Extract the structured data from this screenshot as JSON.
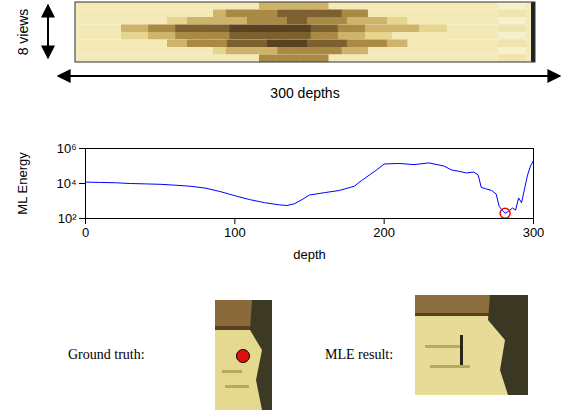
{
  "strip": {
    "rows_label": "8 views",
    "columns_label": "300 depths"
  },
  "chart_data": {
    "type": "line",
    "xlabel": "depth",
    "ylabel": "ML Energy",
    "x": [
      0,
      10,
      20,
      30,
      40,
      50,
      60,
      70,
      80,
      90,
      100,
      110,
      120,
      130,
      135,
      140,
      145,
      150,
      160,
      170,
      180,
      185,
      190,
      195,
      200,
      210,
      220,
      230,
      240,
      245,
      250,
      255,
      260,
      263,
      265,
      268,
      272,
      275,
      277,
      279,
      281,
      283,
      286,
      288,
      290,
      292,
      294,
      296,
      298,
      300
    ],
    "values": [
      12000,
      11500,
      11000,
      10000,
      9500,
      9000,
      8000,
      7000,
      5500,
      3500,
      2000,
      1200,
      800,
      600,
      550,
      700,
      1200,
      2200,
      3000,
      4000,
      7000,
      15000,
      30000,
      60000,
      130000,
      140000,
      120000,
      150000,
      100000,
      60000,
      50000,
      40000,
      45000,
      30000,
      6000,
      5000,
      4000,
      2500,
      500,
      300,
      200,
      250,
      400,
      300,
      1500,
      800,
      5000,
      30000,
      100000,
      200000
    ],
    "color": "#0000ff",
    "xlim": [
      0,
      300
    ],
    "xticks": [
      0,
      100,
      200,
      300
    ],
    "ylim": [
      100,
      1000000
    ],
    "yticks": [
      {
        "value": 100,
        "label": "10²"
      },
      {
        "value": 10000,
        "label": "10⁴"
      },
      {
        "value": 1000000,
        "label": "10⁶"
      }
    ],
    "log": "y",
    "grid": false,
    "highlight": {
      "x": 281,
      "y": 200,
      "color": "#ff0000",
      "marker": "circle"
    }
  },
  "images": {
    "ground_truth_label": "Ground truth:",
    "mle_label": "MLE result:"
  }
}
